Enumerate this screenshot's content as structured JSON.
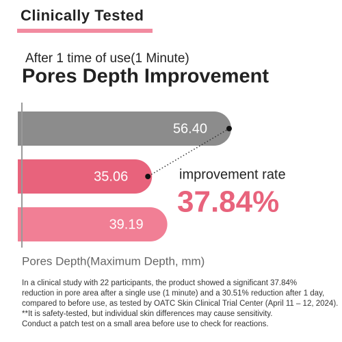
{
  "chart_data": {
    "type": "hbar",
    "header": "Clinically Tested",
    "subtitle": "After 1 time of use(1 Minute)",
    "title": "Pores Depth Improvement",
    "categories": [
      null,
      null,
      null
    ],
    "values": [
      56.4,
      35.06,
      39.19
    ],
    "value_labels": [
      "56.40",
      "35.06",
      "39.19"
    ],
    "colors": [
      "#8c8c8c",
      "#e8637c",
      "#f17f95"
    ],
    "annotation": "improvement rate",
    "improvement_rate": {
      "value": 37.84,
      "label": "37.84%"
    },
    "x_label": "Pores Depth(Maximum Depth, mm)",
    "footnote": [
      "In a clinical study with 22 participants, the product showed a significant 37.84%",
      "reduction in pore area after a single use (1 minute) and a 30.51% reduction after 1 day,",
      "compared to before use, as tested by OATC Skin Clinical Trial Center (April 11 – 12, 2024).",
      "**It is safety-tested, but individual skin differences may cause sensitivity.",
      "Conduct a patch test on a small area before use to check for reactions."
    ]
  }
}
